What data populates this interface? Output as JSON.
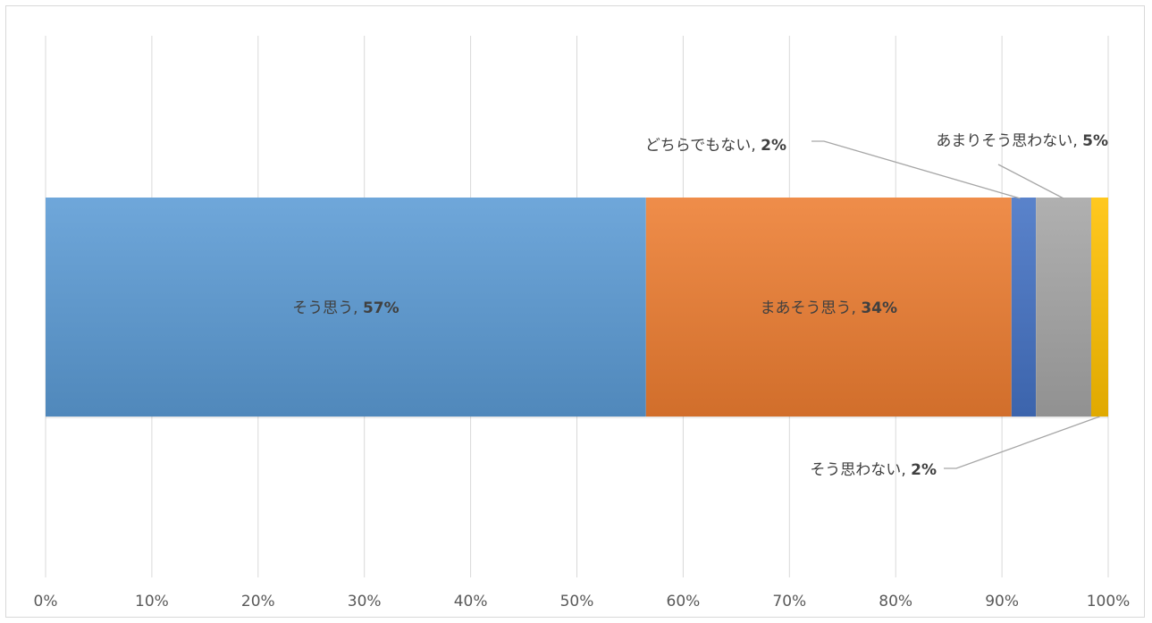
{
  "chart_data": {
    "type": "bar",
    "orientation": "horizontal",
    "stacked": "percent",
    "title": "",
    "xlabel": "",
    "ylabel": "",
    "xlim": [
      0,
      100
    ],
    "x_ticks": [
      "0%",
      "10%",
      "20%",
      "30%",
      "40%",
      "50%",
      "60%",
      "70%",
      "80%",
      "90%",
      "100%"
    ],
    "grid": true,
    "legend": "none",
    "series": [
      {
        "name": "そう思う",
        "value": 56.5,
        "label_name": "そう思う",
        "label_value": "57%",
        "label_position": "inside",
        "color": "#5b9bd5"
      },
      {
        "name": "まあそう思う",
        "value": 34.4,
        "label_name": "まあそう思う",
        "label_value": "34%",
        "label_position": "inside",
        "color": "#ed7d31"
      },
      {
        "name": "どちらでもない",
        "value": 2.3,
        "label_name": "どちらでもない",
        "label_value": "2%",
        "label_position": "callout-top-left",
        "color": "#4472c4"
      },
      {
        "name": "あまりそう思わない",
        "value": 5.2,
        "label_name": "あまりそう思わない",
        "label_value": "5%",
        "label_position": "callout-top-right",
        "color": "#a5a5a5"
      },
      {
        "name": "そう思わない",
        "value": 1.6,
        "label_name": "そう思わない",
        "label_value": "2%",
        "label_position": "callout-bottom",
        "color": "#ffc000"
      }
    ]
  }
}
